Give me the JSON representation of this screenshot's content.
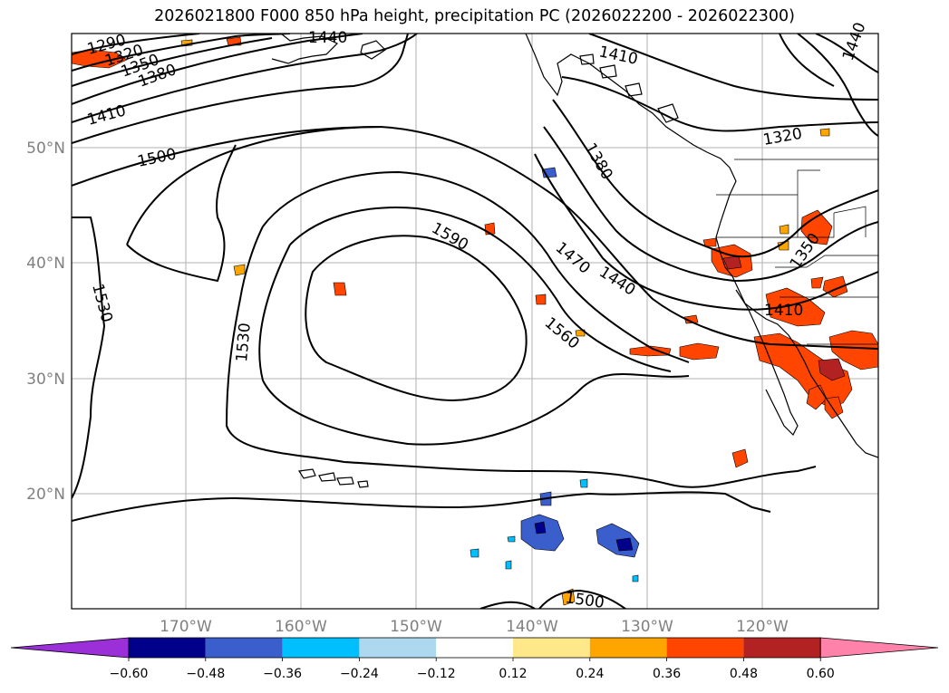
{
  "title": "2026021800 F000 850 hPa height, precipitation PC (2026022200 - 2026022300)",
  "lat_labels": [
    "50°N",
    "40°N",
    "30°N",
    "20°N"
  ],
  "lon_labels": [
    "170°W",
    "160°W",
    "150°W",
    "140°W",
    "130°W",
    "120°W"
  ],
  "contour_labels": [
    "1290",
    "1320",
    "1350",
    "1380",
    "1410",
    "1500",
    "1440",
    "1410",
    "1380",
    "1320",
    "1590",
    "1470",
    "1440",
    "1350",
    "1410",
    "1560",
    "1530",
    "1530",
    "1500",
    "1440"
  ],
  "colorbar": {
    "ticks": [
      "−0.60",
      "−0.48",
      "−0.36",
      "−0.24",
      "−0.12",
      "0.12",
      "0.24",
      "0.36",
      "0.48",
      "0.60"
    ],
    "colors": [
      "#9b30d9",
      "#00008b",
      "#3a5fcd",
      "#00bfff",
      "#add8f0",
      "#ffffff",
      "#ffe88a",
      "#ffa500",
      "#ff4500",
      "#b22222",
      "#ff82ab"
    ]
  }
}
